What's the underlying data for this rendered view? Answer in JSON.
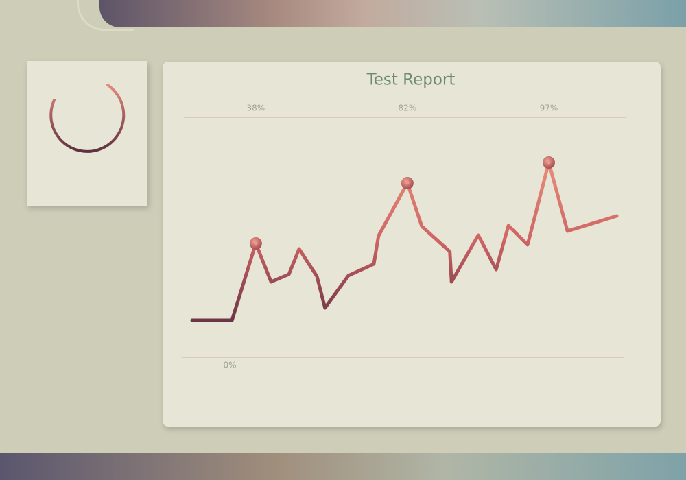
{
  "chart_data": {
    "type": "line",
    "title": "Test Report",
    "x": [
      0,
      9.4,
      15.0,
      18.6,
      22.8,
      25.2,
      29.4,
      31.3,
      36.8,
      42.8,
      43.9,
      50.7,
      54.1,
      60.7,
      61.1,
      67.4,
      71.6,
      74.5,
      79.0,
      84.0,
      88.4,
      100
    ],
    "values": [
      -18,
      -18,
      38,
      10,
      15.5,
      34,
      14,
      -9,
      14.5,
      23,
      43.5,
      82,
      50.5,
      32,
      10,
      44,
      19,
      51,
      37,
      97,
      47,
      58
    ],
    "value_labels": [
      null,
      null,
      "38%",
      null,
      null,
      null,
      null,
      null,
      null,
      null,
      null,
      "82%",
      null,
      null,
      null,
      null,
      null,
      null,
      null,
      "97%",
      null,
      null
    ],
    "annotations": [
      "0%"
    ],
    "xlim": [
      0,
      100
    ],
    "ylim": [
      -45,
      130
    ],
    "color": "#d36c68"
  }
}
